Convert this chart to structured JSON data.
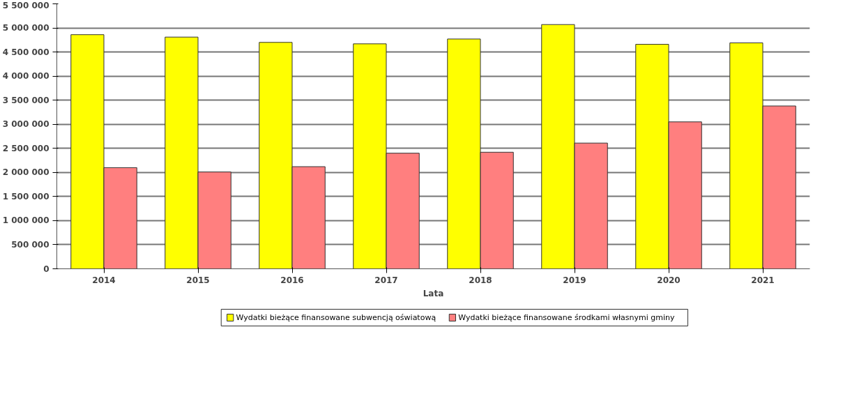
{
  "chart_data": {
    "type": "bar",
    "xlabel": "Lata",
    "categories": [
      "2014",
      "2015",
      "2016",
      "2017",
      "2018",
      "2019",
      "2020",
      "2021"
    ],
    "series": [
      {
        "name": "Wydatki bieżące finansowane subwencją oświatową",
        "color": "#ffff00",
        "values": [
          4860000,
          4810000,
          4700000,
          4670000,
          4770000,
          5070000,
          4660000,
          4690000
        ]
      },
      {
        "name": "Wydatki bieżące finansowane środkami własnymi gminy",
        "color": "#ff7f7f",
        "values": [
          2100000,
          2010000,
          2120000,
          2400000,
          2420000,
          2610000,
          3050000,
          3380000
        ]
      }
    ],
    "ylim": [
      0,
      5500000
    ],
    "yticks": [
      {
        "value": 0,
        "label": "0"
      },
      {
        "value": 500000,
        "label": "500 000"
      },
      {
        "value": 1000000,
        "label": "1 000 000"
      },
      {
        "value": 1500000,
        "label": "1 500 000"
      },
      {
        "value": 2000000,
        "label": "2 000 000"
      },
      {
        "value": 2500000,
        "label": "2 500 000"
      },
      {
        "value": 3000000,
        "label": "3 000 000"
      },
      {
        "value": 3500000,
        "label": "3 500 000"
      },
      {
        "value": 4000000,
        "label": "4 000 000"
      },
      {
        "value": 4500000,
        "label": "4 500 000"
      },
      {
        "value": 5000000,
        "label": "5 000 000"
      },
      {
        "value": 5500000,
        "label": "5 500 000"
      }
    ],
    "grid": "y",
    "legend": "bottom"
  }
}
